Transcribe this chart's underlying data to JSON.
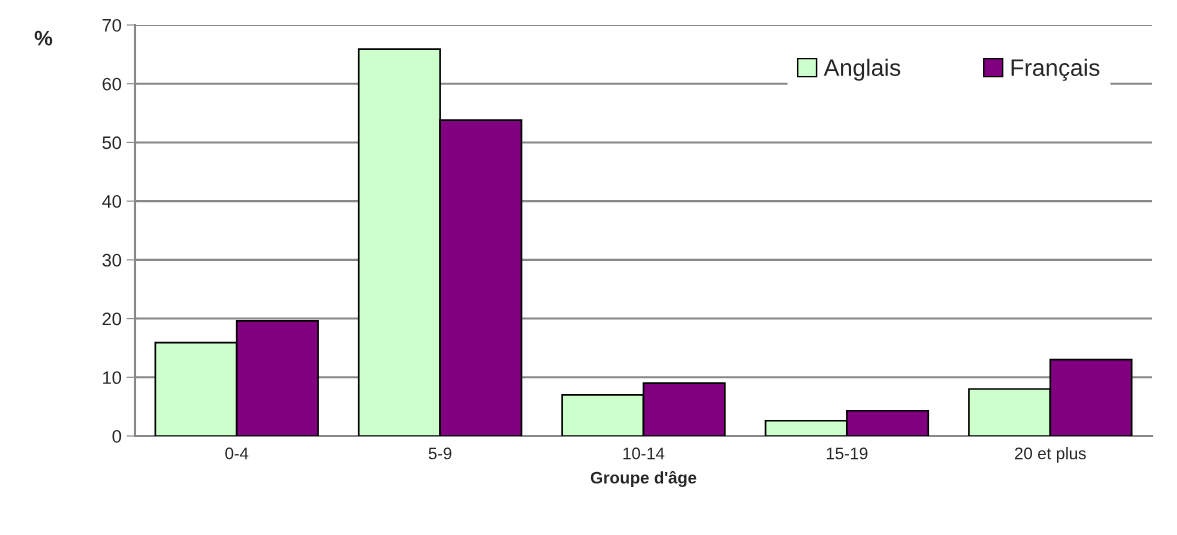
{
  "chart_data": {
    "type": "bar",
    "ylabel": "%",
    "xlabel": "Groupe d'âge",
    "categories": [
      "0-4",
      "5-9",
      "10-14",
      "15-19",
      "20 et plus"
    ],
    "series": [
      {
        "name": "Anglais",
        "color": "#ccffcc",
        "values": [
          15.9,
          65.9,
          7.0,
          2.6,
          8.0
        ]
      },
      {
        "name": "Français",
        "color": "#800080",
        "values": [
          19.6,
          53.8,
          9.0,
          4.3,
          13.0
        ]
      }
    ],
    "ylim": [
      0,
      70
    ],
    "yticks": [
      0,
      10,
      20,
      30,
      40,
      50,
      60,
      70
    ],
    "grid": "y",
    "legend": "top right"
  }
}
